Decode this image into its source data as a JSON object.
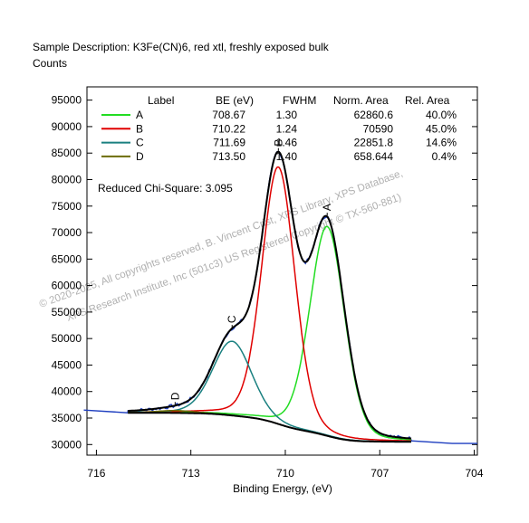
{
  "header": {
    "sample_description": "Sample Description:  K3Fe(CN)6, red xtl, freshly exposed bulk",
    "ylabel": "Counts"
  },
  "table": {
    "headers": [
      "Label",
      "BE (eV)",
      "FWHM",
      "Norm. Area",
      "Rel. Area"
    ],
    "rows": [
      {
        "label": "A",
        "be": "708.67",
        "fwhm": "1.30",
        "area": "62860.6",
        "rel": "40.0%",
        "color": "#22dd22"
      },
      {
        "label": "B",
        "be": "710.22",
        "fwhm": "1.24",
        "area": "70590",
        "rel": "45.0%",
        "color": "#e00000"
      },
      {
        "label": "C",
        "be": "711.69",
        "fwhm": "1.46",
        "area": "22851.8",
        "rel": "14.6%",
        "color": "#1a8080"
      },
      {
        "label": "D",
        "be": "713.50",
        "fwhm": "1.40",
        "area": "658.644",
        "rel": "0.4%",
        "color": "#6b6b00"
      }
    ]
  },
  "chi_square": "Reduced Chi-Square: 3.095",
  "watermark": {
    "line1": "©  2020-2025,  All copyrights reserved,   B. Vincent Crist, XPS Library, XPS Database,",
    "line2": "XPS Research Institute, Inc (501c3)   US Registered Copyright © TX-560-881)"
  },
  "chart_data": {
    "type": "line",
    "title": "Sample Description:  K3Fe(CN)6, red xtl, freshly exposed bulk",
    "xlabel": "Binding Energy, (eV)",
    "ylabel": "Counts",
    "xlim": [
      716.3,
      703.9
    ],
    "ylim": [
      28000,
      97500
    ],
    "x_ticks": [
      716,
      713,
      710,
      707,
      704
    ],
    "y_ticks": [
      30000,
      35000,
      40000,
      45000,
      50000,
      55000,
      60000,
      65000,
      70000,
      75000,
      80000,
      85000,
      90000,
      95000
    ],
    "grid": false,
    "legend": "top",
    "background": {
      "endpoints_x": [
        715.0,
        706.0
      ],
      "endpoints_y": [
        36000,
        30800
      ]
    },
    "series": [
      {
        "name": "A",
        "center": 708.67,
        "fwhm": 1.3,
        "amplitude": 39500,
        "color": "#22dd22"
      },
      {
        "name": "B",
        "center": 710.22,
        "fwhm": 1.24,
        "amplitude": 48500,
        "color": "#e00000"
      },
      {
        "name": "C",
        "center": 711.69,
        "fwhm": 1.46,
        "amplitude": 14000,
        "color": "#1a8080"
      },
      {
        "name": "D",
        "center": 713.5,
        "fwhm": 1.4,
        "amplitude": 450,
        "color": "#6b6b00"
      }
    ],
    "raw_data_color": "#1f3fc0",
    "envelope_color": "#000000",
    "raw_edges": {
      "left": [
        [
          716.4,
          36500
        ],
        [
          715.0,
          36000
        ]
      ],
      "right": [
        [
          706.0,
          30700
        ],
        [
          704.7,
          30200
        ],
        [
          703.9,
          30200
        ]
      ]
    }
  }
}
